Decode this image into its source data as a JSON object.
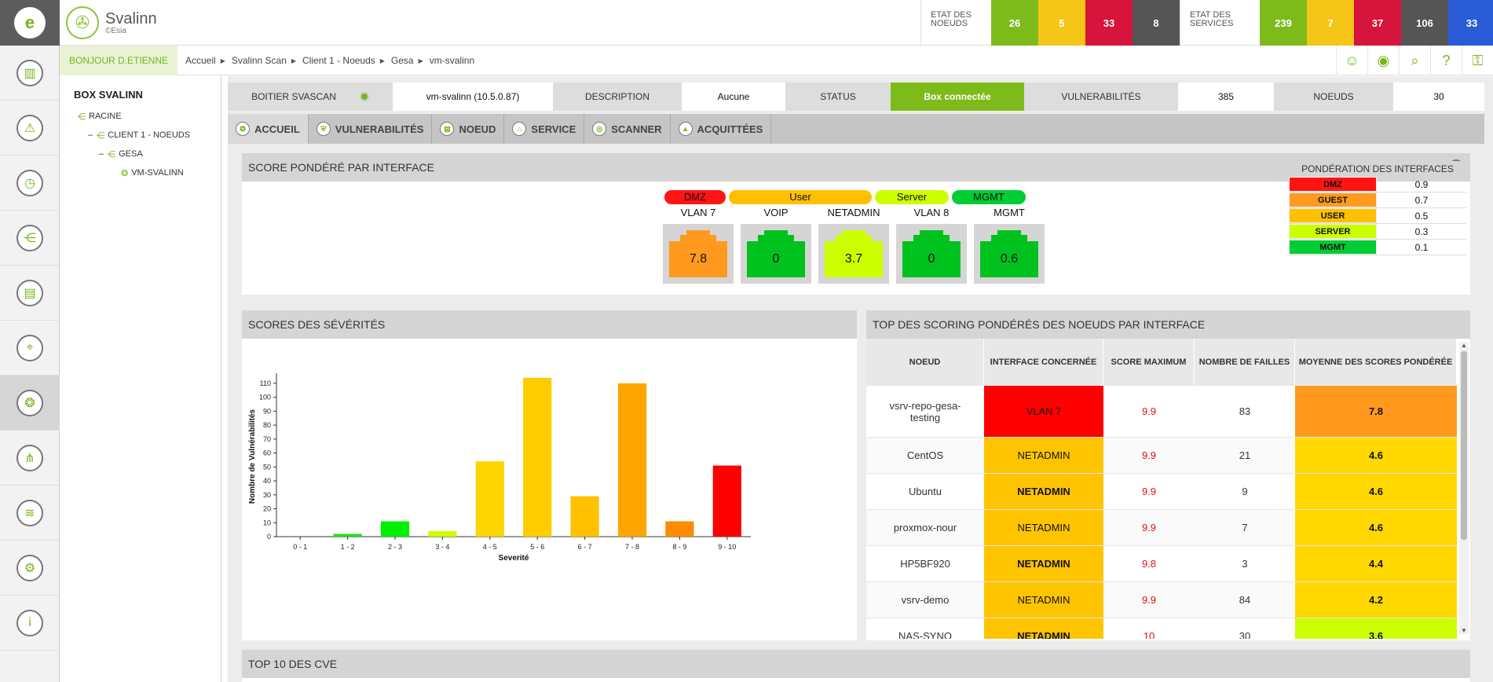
{
  "app": {
    "name": "Svalinn",
    "sub": "©Esia"
  },
  "status": {
    "nodes_label": "ETAT DES NOEUDS",
    "nodes": [
      {
        "v": "26",
        "c": "#7dbb1b"
      },
      {
        "v": "5",
        "c": "#f5c518"
      },
      {
        "v": "33",
        "c": "#d7143c"
      },
      {
        "v": "8",
        "c": "#555555"
      }
    ],
    "services_label": "ETAT DES SERVICES",
    "services": [
      {
        "v": "239",
        "c": "#7dbb1b"
      },
      {
        "v": "7",
        "c": "#f5c518"
      },
      {
        "v": "37",
        "c": "#d7143c"
      },
      {
        "v": "106",
        "c": "#555555"
      },
      {
        "v": "33",
        "c": "#2a5bd7"
      }
    ]
  },
  "greeting": "BONJOUR D.ETIENNE",
  "breadcrumb": [
    "Accueil",
    "Svalinn Scan",
    "Client 1 - Noeuds",
    "Gesa",
    "vm-svalinn"
  ],
  "tree": {
    "title": "BOX SVALINN",
    "nodes": [
      {
        "label": "RACINE",
        "prefix": ""
      },
      {
        "label": "CLIENT 1 - NOEUDS",
        "prefix": "–"
      },
      {
        "label": "GESA",
        "prefix": "–"
      },
      {
        "label": "VM-SVALINN",
        "prefix": ""
      }
    ]
  },
  "info": {
    "boitier_label": "BOITIER SVASCAN",
    "boitier_value": "vm-svalinn (10.5.0.87)",
    "desc_label": "DESCRIPTION",
    "desc_value": "Aucune",
    "status_label": "STATUS",
    "status_value": "Box connectée",
    "vuln_label": "VULNERABILITÉS",
    "vuln_value": "385",
    "nodes_label": "NOEUDS",
    "nodes_value": "30"
  },
  "tabs": [
    "ACCUEIL",
    "VULNERABILITÉS",
    "NOEUD",
    "SERVICE",
    "SCANNER",
    "ACQUITTÉES"
  ],
  "score_panel": {
    "title": "SCORE PONDÉRÉ PAR INTERFACE",
    "groups": [
      {
        "label": "DMZ",
        "color": "#ff1414"
      },
      {
        "label": "User",
        "color": "#ffc000"
      },
      {
        "label": "Server",
        "color": "#ccff00"
      },
      {
        "label": "MGMT",
        "color": "#00cc33"
      }
    ],
    "cards": [
      {
        "label": "VLAN 7",
        "score": "7.8",
        "color": "#ff9a1e"
      },
      {
        "label": "VOIP",
        "score": "0",
        "color": "#00c21f"
      },
      {
        "label": "NETADMIN",
        "score": "3.7",
        "color": "#ccff00"
      },
      {
        "label": "VLAN 8",
        "score": "0",
        "color": "#00c21f"
      },
      {
        "label": "MGMT",
        "score": "0.6",
        "color": "#00c21f"
      }
    ],
    "ponderation": {
      "title": "PONDÉRATION DES INTERFACES",
      "rows": [
        {
          "n": "DMZ",
          "v": "0.9",
          "c": "#ff1414"
        },
        {
          "n": "GUEST",
          "v": "0.7",
          "c": "#ff9a1e"
        },
        {
          "n": "USER",
          "v": "0.5",
          "c": "#ffc000"
        },
        {
          "n": "SERVER",
          "v": "0.3",
          "c": "#ccff00"
        },
        {
          "n": "MGMT",
          "v": "0.1",
          "c": "#00cc33"
        }
      ]
    }
  },
  "sev_panel": {
    "title": "SCORES DES SÉVÉRITÉS"
  },
  "chart_data": {
    "type": "bar",
    "categories": [
      "0 - 1",
      "1 - 2",
      "2 - 3",
      "3 - 4",
      "4 - 5",
      "5 - 6",
      "6 - 7",
      "7 - 8",
      "8 - 9",
      "9 - 10"
    ],
    "values": [
      0,
      2,
      11,
      4,
      54,
      114,
      29,
      110,
      11,
      51
    ],
    "colors": [
      "#00cc00",
      "#1fe01f",
      "#00ee00",
      "#ccff00",
      "#ffd500",
      "#ffcc00",
      "#ffc000",
      "#ffa500",
      "#ff8c00",
      "#ff0000"
    ],
    "xlabel": "Severité",
    "ylabel": "Nombre de Vulnérabilités",
    "yticks": [
      0,
      10,
      20,
      30,
      40,
      50,
      60,
      70,
      80,
      90,
      100,
      110
    ],
    "ylim": [
      0,
      115
    ],
    "grid": false
  },
  "top_panel": {
    "title": "TOP DES SCORING PONDÉRÉS DES NOEUDS PAR INTERFACE",
    "headers": [
      "NOEUD",
      "INTERFACE CONCERNÉE",
      "SCORE MAXIMUM",
      "NOMBRE DE FAILLES",
      "MOYENNE DES SCORES PONDÉRÉE"
    ],
    "rows": [
      {
        "node": "vsrv-repo-gesa-testing",
        "iface": "VLAN 7",
        "iface_color": "#ff0000",
        "max": "9.9",
        "count": "83",
        "avg": "7.8",
        "avg_color": "#ff9a1e",
        "bold": false
      },
      {
        "node": "CentOS",
        "iface": "NETADMIN",
        "iface_color": "#ffc400",
        "max": "9.9",
        "count": "21",
        "avg": "4.6",
        "avg_color": "#ffd800",
        "bold": false
      },
      {
        "node": "Ubuntu",
        "iface": "NETADMIN",
        "iface_color": "#ffc400",
        "max": "9.9",
        "count": "9",
        "avg": "4.6",
        "avg_color": "#ffd800",
        "bold": true
      },
      {
        "node": "proxmox-nour",
        "iface": "NETADMIN",
        "iface_color": "#ffc400",
        "max": "9.9",
        "count": "7",
        "avg": "4.6",
        "avg_color": "#ffd800",
        "bold": false
      },
      {
        "node": "HP5BF920",
        "iface": "NETADMIN",
        "iface_color": "#ffc400",
        "max": "9.8",
        "count": "3",
        "avg": "4.4",
        "avg_color": "#ffd800",
        "bold": true
      },
      {
        "node": "vsrv-demo",
        "iface": "NETADMIN",
        "iface_color": "#ffc400",
        "max": "9.9",
        "count": "84",
        "avg": "4.2",
        "avg_color": "#ffd800",
        "bold": false
      },
      {
        "node": "NAS-SYNO",
        "iface": "NETADMIN",
        "iface_color": "#ffc400",
        "max": "10",
        "count": "30",
        "avg": "3.6",
        "avg_color": "#ccff00",
        "bold": true
      }
    ]
  },
  "cve_panel": {
    "title": "TOP 10 DES CVE"
  }
}
